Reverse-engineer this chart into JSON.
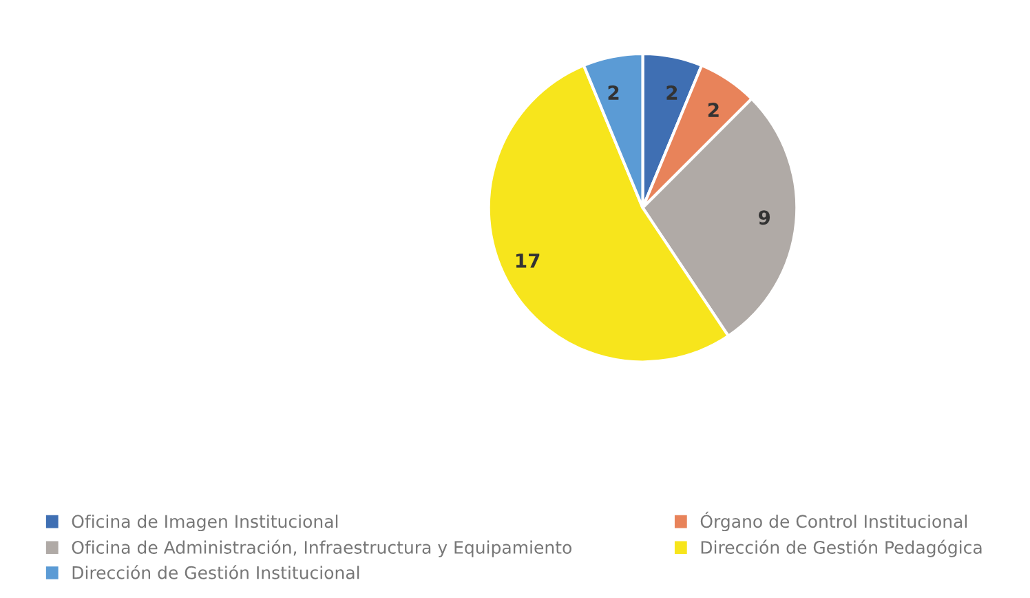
{
  "chart_data": {
    "type": "pie",
    "categories": [
      "Oficina de Imagen Institucional",
      "Órgano de Control Institucional",
      "Oficina de Administración, Infraestructura y Equipamiento",
      "Dirección de Gestión Pedagógica",
      "Dirección de Gestión Institucional"
    ],
    "values": [
      2,
      2,
      9,
      17,
      2
    ],
    "colors": [
      "#3f6fb3",
      "#e8835a",
      "#b0aaa6",
      "#f7e51c",
      "#5b9bd5"
    ],
    "data_labels": true,
    "legend": "bottom"
  }
}
